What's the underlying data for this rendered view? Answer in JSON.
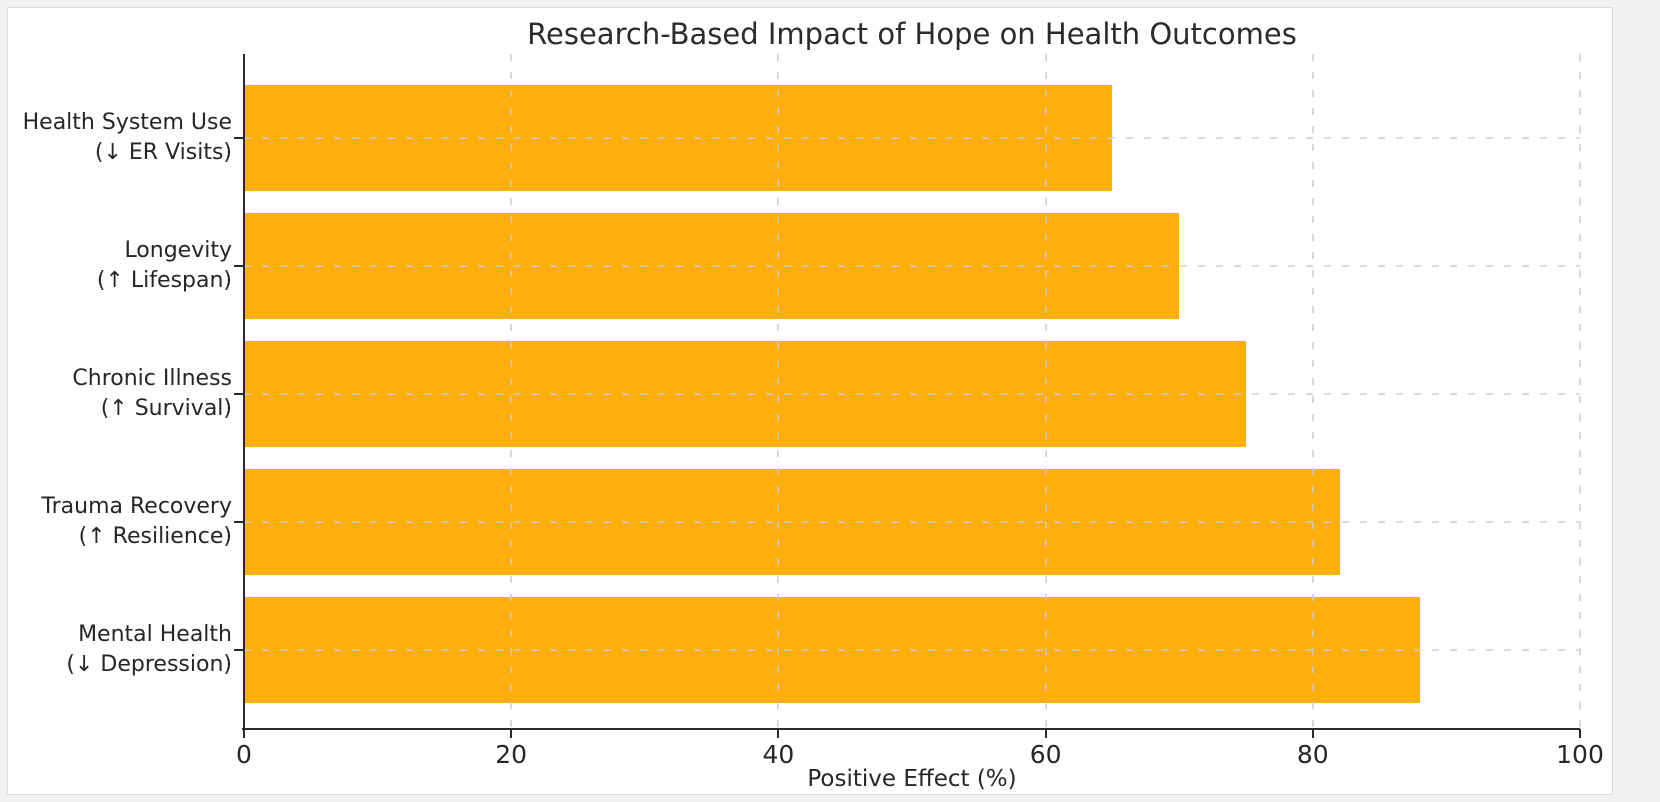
{
  "page": {
    "background_color": "#f1f1f1",
    "figure_background_color": "#ffffff"
  },
  "chart_data": {
    "type": "bar",
    "orientation": "horizontal",
    "title": "Research-Based Impact of Hope on Health Outcomes",
    "xlabel": "Positive Effect (%)",
    "categories": [
      "Health System Use",
      "Longevity",
      "Chronic Illness",
      "Trauma Recovery",
      "Mental Health"
    ],
    "category_sublabels": [
      "(↓ ER Visits)",
      "(↑ Lifespan)",
      "(↑ Survival)",
      "(↑ Resilience)",
      "(↓ Depression)"
    ],
    "values": [
      65,
      70,
      75,
      82,
      88
    ],
    "xlim": [
      0,
      100
    ],
    "x_ticks": [
      0,
      20,
      40,
      60,
      80,
      100
    ],
    "bar_color": "#ffaf0d",
    "grid": "dashed-both-axes-over-bars",
    "grid_color": "#cccccc",
    "axis_color": "#2a2a2a",
    "legend": "none"
  }
}
